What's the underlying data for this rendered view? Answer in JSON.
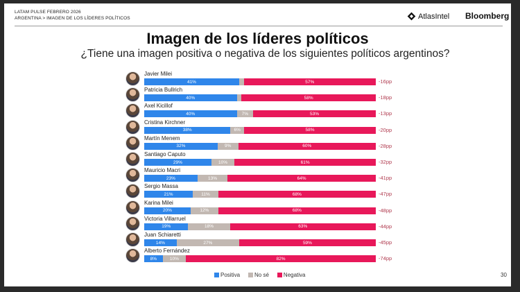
{
  "header": {
    "line1": "LATAM PULSE FEBRERO 2026",
    "line2": "ARGENTINA > IMAGEN DE LOS LÍDERES POLÍTICOS",
    "atlas_logo": "AtlasIntel",
    "bloomberg_logo": "Bloomberg"
  },
  "page_number": "30",
  "colors": {
    "positiva": "#2f86ea",
    "nose": "#c2b8b2",
    "negativa": "#e8185a"
  },
  "chart_data": {
    "type": "bar",
    "orientation": "horizontal-stacked-100",
    "title": "Imagen de los líderes políticos",
    "subtitle": "¿Tiene una imagen positiva o negativa de los siguientes políticos argentinos?",
    "legend": [
      "Positiva",
      "No sé",
      "Negativa"
    ],
    "legend_position": "bottom",
    "categories": [
      "Javier Milei",
      "Patricia Bullrich",
      "Axel Kicillof",
      "Cristina Kirchner",
      "Martín Menem",
      "Santiago Caputo",
      "Mauricio Macri",
      "Sergio Massa",
      "Karina Milei",
      "Victoria Villarruel",
      "Juan Schiaretti",
      "Alberto Fernández"
    ],
    "series": [
      {
        "name": "Positiva",
        "values": [
          41,
          40,
          40,
          38,
          32,
          29,
          23,
          21,
          20,
          19,
          14,
          8
        ],
        "labels": [
          "41%",
          "40%",
          "40%",
          "38%",
          "32%",
          "29%",
          "23%",
          "21%",
          "20%",
          "19%",
          "14%",
          "8%"
        ]
      },
      {
        "name": "No sé",
        "values": [
          2,
          2,
          7,
          6,
          9,
          10,
          13,
          11,
          12,
          18,
          27,
          10
        ],
        "labels": [
          "",
          "",
          "7%",
          "6%",
          "9%",
          "10%",
          "13%",
          "11%",
          "12%",
          "18%",
          "27%",
          "10%"
        ]
      },
      {
        "name": "Negativa",
        "values": [
          57,
          58,
          53,
          58,
          60,
          61,
          64,
          68,
          68,
          63,
          59,
          82
        ],
        "labels": [
          "57%",
          "58%",
          "53%",
          "58%",
          "60%",
          "61%",
          "64%",
          "68%",
          "68%",
          "63%",
          "59%",
          "82%"
        ]
      }
    ],
    "net": [
      "-16pp",
      "-18pp",
      "-13pp",
      "-20pp",
      "-28pp",
      "-32pp",
      "-41pp",
      "-47pp",
      "-48pp",
      "-44pp",
      "-45pp",
      "-74pp"
    ],
    "xlim": [
      0,
      100
    ]
  }
}
